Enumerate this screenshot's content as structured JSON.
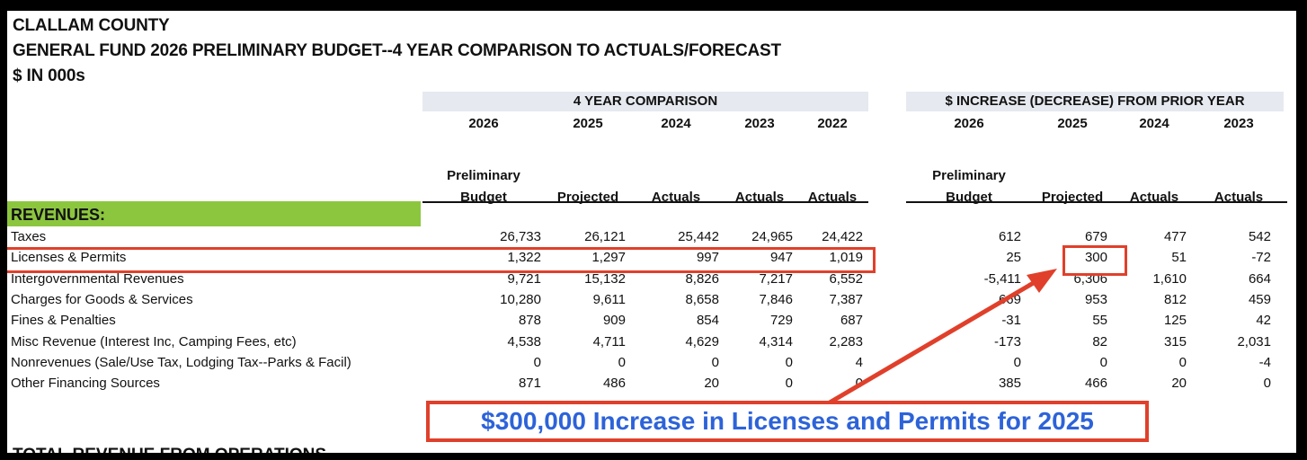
{
  "header": {
    "county": "CLALLAM COUNTY",
    "title": "GENERAL FUND 2026 PRELIMINARY BUDGET--4 YEAR COMPARISON TO ACTUALS/FORECAST",
    "units": "$ IN 000s"
  },
  "comparison": {
    "title": "4 YEAR COMPARISON",
    "years": [
      "2026",
      "2025",
      "2024",
      "2023",
      "2022"
    ],
    "types": [
      "Budget",
      "Projected",
      "Actuals",
      "Actuals",
      "Actuals"
    ],
    "type_prefix": "Preliminary"
  },
  "change": {
    "title": "$ INCREASE (DECREASE) FROM PRIOR YEAR",
    "years": [
      "2026",
      "2025",
      "2024",
      "2023"
    ],
    "types": [
      "Budget",
      "Projected",
      "Actuals",
      "Actuals"
    ],
    "type_prefix": "Preliminary"
  },
  "section_label": "REVENUES:",
  "rows": [
    {
      "label": "Taxes",
      "comp": [
        "26,733",
        "26,121",
        "25,442",
        "24,965",
        "24,422"
      ],
      "chg": [
        "612",
        "679",
        "477",
        "542"
      ]
    },
    {
      "label": "Licenses & Permits",
      "comp": [
        "1,322",
        "1,297",
        "997",
        "947",
        "1,019"
      ],
      "chg": [
        "25",
        "300",
        "51",
        "-72"
      ]
    },
    {
      "label": "Intergovernmental Revenues",
      "comp": [
        "9,721",
        "15,132",
        "8,826",
        "7,217",
        "6,552"
      ],
      "chg": [
        "-5,411",
        "6,306",
        "1,610",
        "664"
      ]
    },
    {
      "label": "Charges for Goods & Services",
      "comp": [
        "10,280",
        "9,611",
        "8,658",
        "7,846",
        "7,387"
      ],
      "chg": [
        "669",
        "953",
        "812",
        "459"
      ]
    },
    {
      "label": "Fines & Penalties",
      "comp": [
        "878",
        "909",
        "854",
        "729",
        "687"
      ],
      "chg": [
        "-31",
        "55",
        "125",
        "42"
      ]
    },
    {
      "label": "Misc Revenue (Interest Inc, Camping Fees, etc)",
      "comp": [
        "4,538",
        "4,711",
        "4,629",
        "4,314",
        "2,283"
      ],
      "chg": [
        "-173",
        "82",
        "315",
        "2,031"
      ]
    },
    {
      "label": "Nonrevenues (Sale/Use Tax, Lodging Tax--Parks & Facil)",
      "comp": [
        "0",
        "0",
        "0",
        "0",
        "4"
      ],
      "chg": [
        "0",
        "0",
        "0",
        "-4"
      ]
    },
    {
      "label": "Other Financing Sources",
      "comp": [
        "871",
        "486",
        "20",
        "0",
        "0"
      ],
      "chg": [
        "385",
        "466",
        "20",
        "0"
      ]
    }
  ],
  "callout": "$300,000 Increase in Licenses and Permits for 2025",
  "cut_off_text": "TOTAL REVENUE FROM OPERATIONS",
  "colors": {
    "highlight": "#e0402b",
    "callout_text": "#2d63d9",
    "revenues_bg": "#8cc63f"
  }
}
